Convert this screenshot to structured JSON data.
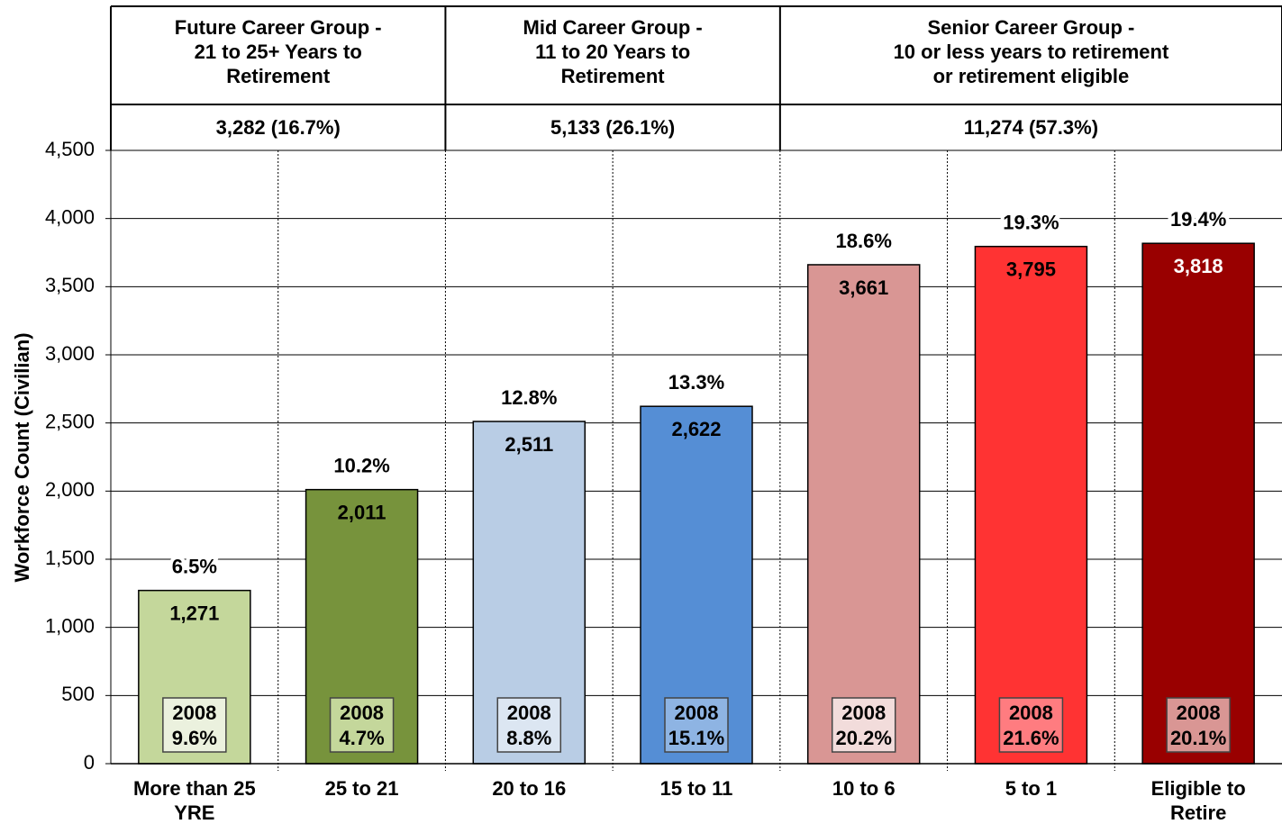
{
  "chart_data": {
    "type": "bar",
    "y_label": "Workforce Count (Civilian)",
    "categories": [
      [
        "More than 25",
        "YRE"
      ],
      [
        "25 to 21"
      ],
      [
        "20 to 16"
      ],
      [
        "15 to 11"
      ],
      [
        "10 to 6"
      ],
      [
        "5 to 1"
      ],
      [
        "Eligible to",
        "Retire"
      ]
    ],
    "values": [
      1271,
      2011,
      2511,
      2622,
      3661,
      3795,
      3818
    ],
    "value_labels": [
      "1,271",
      "2,011",
      "2,511",
      "2,622",
      "3,661",
      "3,795",
      "3,818"
    ],
    "share_labels": [
      "6.5%",
      "10.2%",
      "12.8%",
      "13.3%",
      "18.6%",
      "19.3%",
      "19.4%"
    ],
    "baseline_year": "2008",
    "baseline_labels": [
      "9.6%",
      "4.7%",
      "8.8%",
      "15.1%",
      "20.2%",
      "21.6%",
      "20.1%"
    ],
    "colors": [
      "#c4d79b",
      "#77933c",
      "#b9cde5",
      "#558ed5",
      "#d99694",
      "#ff3333",
      "#990000"
    ],
    "box_colors": [
      "#ebf1de",
      "#c4d79b",
      "#dce6f2",
      "#8eb4e3",
      "#f2dcdb",
      "#ff7c80",
      "#d99694"
    ],
    "ylim": [
      0,
      4500
    ],
    "yticks": [
      0,
      500,
      {
        "value": 1000,
        "label": "1,000"
      },
      {
        "value": 1500,
        "label": "1,500"
      },
      {
        "value": 2000,
        "label": "2,000"
      },
      {
        "value": 2500,
        "label": "2,500"
      },
      {
        "value": 3000,
        "label": "3,000"
      },
      {
        "value": 3500,
        "label": "3,500"
      },
      {
        "value": 4000,
        "label": "4,000"
      },
      {
        "value": 4500,
        "label": "4,500"
      }
    ],
    "grid": true,
    "groups": [
      {
        "title": [
          "Future Career Group -",
          "21 to 25+ Years to",
          "Retirement"
        ],
        "total": "3,282 (16.7%)"
      },
      {
        "title": [
          "Mid Career Group -",
          "11 to 20 Years to",
          "Retirement"
        ],
        "total": "5,133 (26.1%)"
      },
      {
        "title": [
          "Senior Career Group -",
          "10 or less years to retirement",
          "or retirement eligible"
        ],
        "total": "11,274 (57.3%)"
      }
    ]
  }
}
